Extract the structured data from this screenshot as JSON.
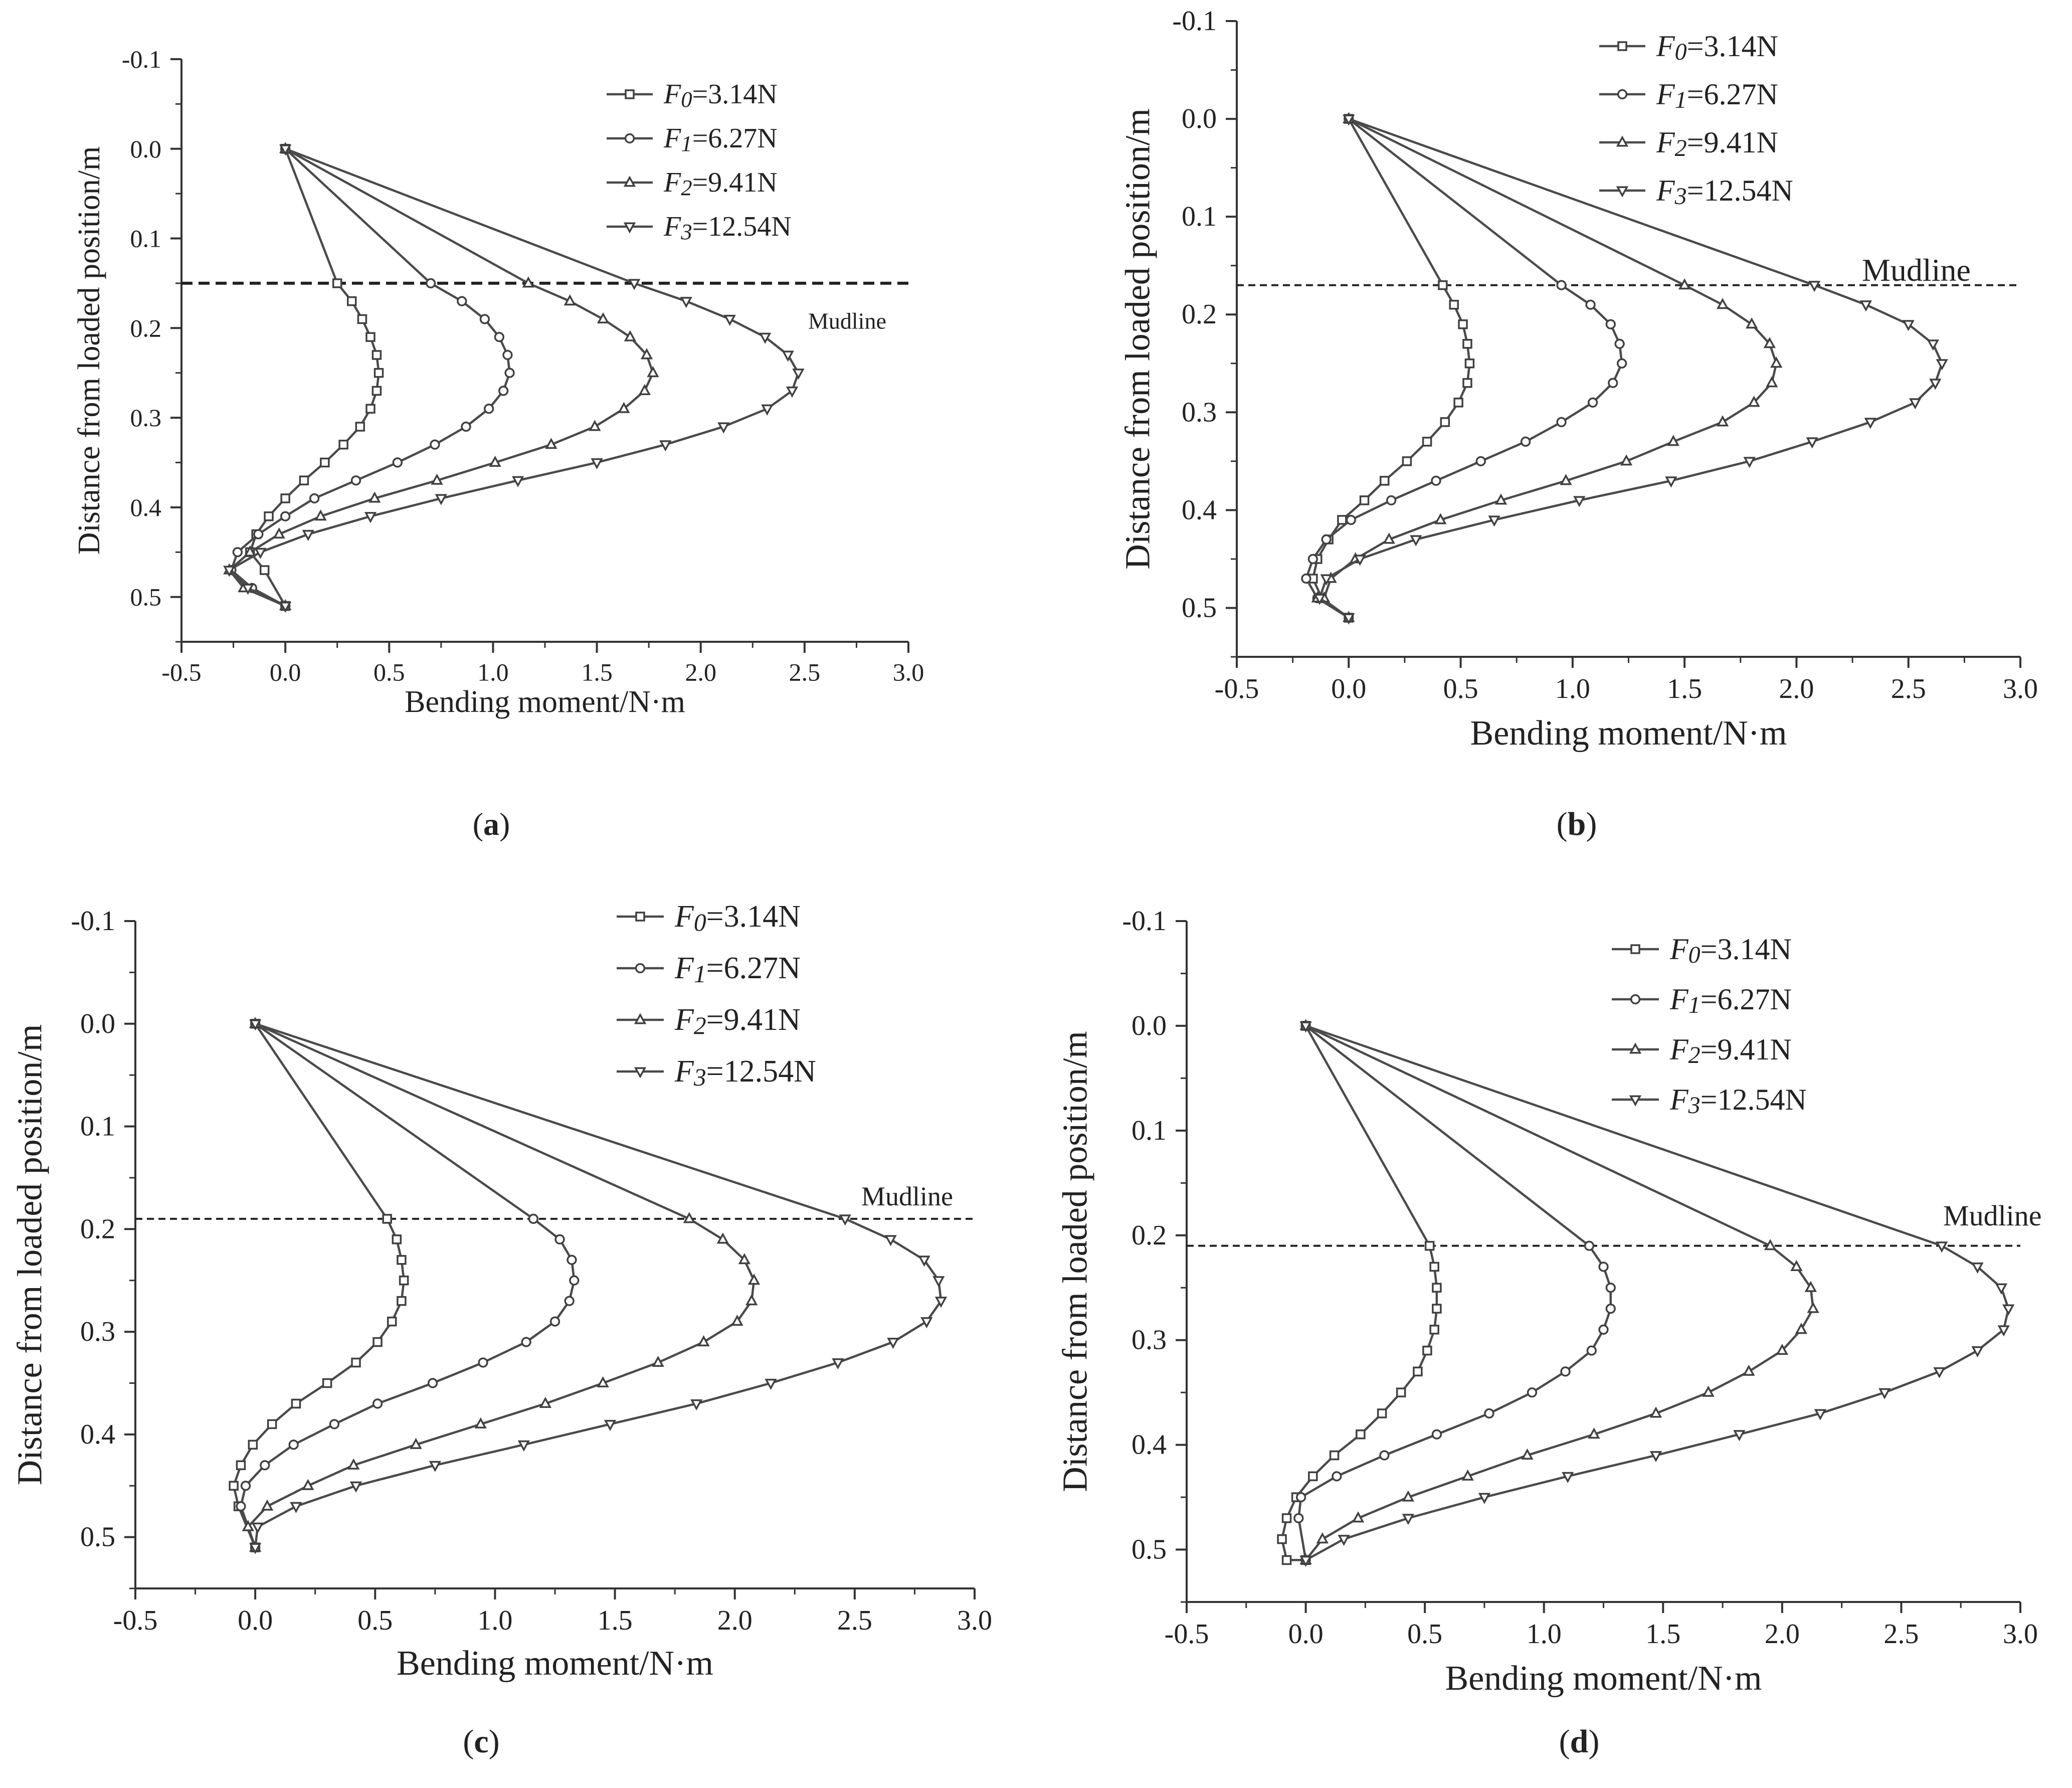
{
  "figure": {
    "panels": [
      {
        "id": "a",
        "caption_letter": "a",
        "series_names": [
          "F",
          "F",
          "F",
          "F"
        ],
        "series_subs": [
          "0",
          "1",
          "2",
          "3"
        ],
        "series_eqs": [
          "=3.14N",
          "=6.27N",
          "=9.41N",
          "=12.54N"
        ],
        "mudline_label": "Mudline"
      },
      {
        "id": "b",
        "caption_letter": "b",
        "series_names": [
          "F",
          "F",
          "F",
          "F"
        ],
        "series_subs": [
          "0",
          "1",
          "2",
          "3"
        ],
        "series_eqs": [
          "=3.14N",
          "=6.27N",
          "=9.41N",
          "=12.54N"
        ],
        "mudline_label": "Mudline"
      },
      {
        "id": "c",
        "caption_letter": "c",
        "series_names": [
          "F",
          "F",
          "F",
          "F"
        ],
        "series_subs": [
          "0",
          "1",
          "2",
          "3"
        ],
        "series_eqs": [
          "=3.14N",
          "=6.27N",
          "=9.41N",
          "=12.54N"
        ],
        "mudline_label": "Mudline"
      },
      {
        "id": "d",
        "caption_letter": "d",
        "series_names": [
          "F",
          "F",
          "F",
          "F"
        ],
        "series_subs": [
          "0",
          "1",
          "2",
          "3"
        ],
        "series_eqs": [
          "=3.14N",
          "=6.27N",
          "=9.41N",
          "=12.54N"
        ],
        "mudline_label": "Mudline"
      }
    ]
  },
  "chart_data": [
    {
      "panel": "a",
      "type": "line",
      "title": "",
      "xlabel": "Bending moment/N·m",
      "ylabel": "Distance from loaded position/m",
      "xlim": [
        -0.5,
        3.0
      ],
      "ylim": [
        -0.1,
        0.55
      ],
      "y_inverted": true,
      "xticks": [
        "-0.5",
        "0.0",
        "0.5",
        "1.0",
        "1.5",
        "2.0",
        "2.5",
        "3.0"
      ],
      "yticks": [
        "-0.1",
        "0.0",
        "0.1",
        "0.2",
        "0.3",
        "0.4",
        "0.5"
      ],
      "mudline": 0.15,
      "series": [
        {
          "name": "F0=3.14N",
          "marker": "square",
          "x": [
            0,
            0.25,
            0.32,
            0.37,
            0.41,
            0.44,
            0.45,
            0.44,
            0.41,
            0.36,
            0.28,
            0.19,
            0.09,
            0.0,
            -0.08,
            -0.14,
            -0.17,
            -0.1,
            0
          ],
          "y": [
            0,
            0.15,
            0.17,
            0.19,
            0.21,
            0.23,
            0.25,
            0.27,
            0.29,
            0.31,
            0.33,
            0.35,
            0.37,
            0.39,
            0.41,
            0.43,
            0.45,
            0.47,
            0.51
          ]
        },
        {
          "name": "F1=6.27N",
          "marker": "circle",
          "x": [
            0,
            0.7,
            0.85,
            0.96,
            1.03,
            1.07,
            1.08,
            1.05,
            0.98,
            0.87,
            0.72,
            0.54,
            0.34,
            0.14,
            0.0,
            -0.13,
            -0.23,
            -0.26,
            -0.16,
            0
          ],
          "y": [
            0,
            0.15,
            0.17,
            0.19,
            0.21,
            0.23,
            0.25,
            0.27,
            0.29,
            0.31,
            0.33,
            0.35,
            0.37,
            0.39,
            0.41,
            0.43,
            0.45,
            0.47,
            0.49,
            0.51
          ]
        },
        {
          "name": "F2=9.41N",
          "marker": "triangle-up",
          "x": [
            0,
            1.17,
            1.37,
            1.53,
            1.66,
            1.74,
            1.77,
            1.73,
            1.63,
            1.49,
            1.28,
            1.01,
            0.73,
            0.43,
            0.17,
            -0.03,
            -0.17,
            -0.27,
            -0.2,
            0
          ],
          "y": [
            0,
            0.15,
            0.17,
            0.19,
            0.21,
            0.23,
            0.25,
            0.27,
            0.29,
            0.31,
            0.33,
            0.35,
            0.37,
            0.39,
            0.41,
            0.43,
            0.45,
            0.47,
            0.49,
            0.51
          ]
        },
        {
          "name": "F3=12.54N",
          "marker": "triangle-down",
          "x": [
            0,
            1.68,
            1.93,
            2.14,
            2.31,
            2.42,
            2.47,
            2.44,
            2.32,
            2.11,
            1.83,
            1.5,
            1.12,
            0.75,
            0.41,
            0.11,
            -0.12,
            -0.27,
            -0.18,
            0
          ],
          "y": [
            0,
            0.15,
            0.17,
            0.19,
            0.21,
            0.23,
            0.25,
            0.27,
            0.29,
            0.31,
            0.33,
            0.35,
            0.37,
            0.39,
            0.41,
            0.43,
            0.45,
            0.47,
            0.49,
            0.51
          ]
        }
      ]
    },
    {
      "panel": "b",
      "type": "line",
      "title": "",
      "xlabel": "Bending moment/N·m",
      "ylabel": "Distance from loaded position/m",
      "xlim": [
        -0.5,
        3.0
      ],
      "ylim": [
        -0.1,
        0.55
      ],
      "y_inverted": true,
      "xticks": [
        "-0.5",
        "0.0",
        "0.5",
        "1.0",
        "1.5",
        "2.0",
        "2.5",
        "3.0"
      ],
      "yticks": [
        "-0.1",
        "0.0",
        "0.1",
        "0.2",
        "0.3",
        "0.4",
        "0.5"
      ],
      "mudline": 0.17,
      "series": [
        {
          "name": "F0=3.14N",
          "marker": "square",
          "x": [
            0,
            0.42,
            0.47,
            0.51,
            0.53,
            0.54,
            0.53,
            0.49,
            0.43,
            0.35,
            0.26,
            0.16,
            0.07,
            -0.03,
            -0.09,
            -0.14,
            -0.16,
            -0.12,
            0
          ],
          "y": [
            0,
            0.17,
            0.19,
            0.21,
            0.23,
            0.25,
            0.27,
            0.29,
            0.31,
            0.33,
            0.35,
            0.37,
            0.39,
            0.41,
            0.43,
            0.45,
            0.47,
            0.49,
            0.51
          ]
        },
        {
          "name": "F1=6.27N",
          "marker": "circle",
          "x": [
            0,
            0.95,
            1.08,
            1.17,
            1.21,
            1.22,
            1.18,
            1.09,
            0.95,
            0.79,
            0.59,
            0.39,
            0.19,
            0.01,
            -0.1,
            -0.16,
            -0.19,
            -0.14,
            0
          ],
          "y": [
            0,
            0.17,
            0.19,
            0.21,
            0.23,
            0.25,
            0.27,
            0.29,
            0.31,
            0.33,
            0.35,
            0.37,
            0.39,
            0.41,
            0.43,
            0.45,
            0.47,
            0.49,
            0.51
          ]
        },
        {
          "name": "F2=9.41N",
          "marker": "triangle-up",
          "x": [
            0,
            1.5,
            1.67,
            1.8,
            1.88,
            1.91,
            1.89,
            1.81,
            1.67,
            1.45,
            1.24,
            0.97,
            0.68,
            0.41,
            0.18,
            0.03,
            -0.08,
            -0.11,
            -0.14,
            0
          ],
          "y": [
            0,
            0.17,
            0.19,
            0.21,
            0.23,
            0.25,
            0.27,
            0.29,
            0.31,
            0.33,
            0.35,
            0.37,
            0.39,
            0.41,
            0.43,
            0.45,
            0.47,
            0.49,
            0.49,
            0.51
          ]
        },
        {
          "name": "F3=12.54N",
          "marker": "triangle-down",
          "x": [
            0,
            2.08,
            2.31,
            2.5,
            2.61,
            2.65,
            2.62,
            2.53,
            2.33,
            2.07,
            1.79,
            1.44,
            1.03,
            0.65,
            0.3,
            0.05,
            -0.1,
            -0.13,
            0
          ],
          "y": [
            0,
            0.17,
            0.19,
            0.21,
            0.23,
            0.25,
            0.27,
            0.29,
            0.31,
            0.33,
            0.35,
            0.37,
            0.39,
            0.41,
            0.43,
            0.45,
            0.47,
            0.49,
            0.51
          ]
        }
      ]
    },
    {
      "panel": "c",
      "type": "line",
      "title": "",
      "xlabel": "Bending moment/N·m",
      "ylabel": "Distance from loaded position/m",
      "xlim": [
        -0.5,
        3.0
      ],
      "ylim": [
        -0.1,
        0.55
      ],
      "y_inverted": true,
      "xticks": [
        "-0.5",
        "0.0",
        "0.5",
        "1.0",
        "1.5",
        "2.0",
        "2.5",
        "3.0"
      ],
      "yticks": [
        "-0.1",
        "0.0",
        "0.1",
        "0.2",
        "0.3",
        "0.4",
        "0.5"
      ],
      "mudline": 0.19,
      "series": [
        {
          "name": "F0=3.14N",
          "marker": "square",
          "x": [
            0,
            0.55,
            0.59,
            0.61,
            0.62,
            0.61,
            0.57,
            0.51,
            0.42,
            0.3,
            0.17,
            0.07,
            -0.01,
            -0.06,
            -0.09,
            -0.07,
            0
          ],
          "y": [
            0,
            0.19,
            0.21,
            0.23,
            0.25,
            0.27,
            0.29,
            0.31,
            0.33,
            0.35,
            0.37,
            0.39,
            0.41,
            0.43,
            0.45,
            0.47,
            0.51
          ]
        },
        {
          "name": "F1=6.27N",
          "marker": "circle",
          "x": [
            0,
            1.16,
            1.27,
            1.32,
            1.33,
            1.31,
            1.25,
            1.13,
            0.95,
            0.74,
            0.51,
            0.33,
            0.16,
            0.04,
            -0.04,
            -0.06,
            0
          ],
          "y": [
            0,
            0.19,
            0.21,
            0.23,
            0.25,
            0.27,
            0.29,
            0.31,
            0.33,
            0.35,
            0.37,
            0.39,
            0.41,
            0.43,
            0.45,
            0.47,
            0.51
          ]
        },
        {
          "name": "F2=9.41N",
          "marker": "triangle-up",
          "x": [
            0,
            1.81,
            1.95,
            2.04,
            2.08,
            2.07,
            2.01,
            1.87,
            1.68,
            1.45,
            1.21,
            0.94,
            0.67,
            0.41,
            0.22,
            0.05,
            -0.03,
            0
          ],
          "y": [
            0,
            0.19,
            0.21,
            0.23,
            0.25,
            0.27,
            0.29,
            0.31,
            0.33,
            0.35,
            0.37,
            0.39,
            0.41,
            0.43,
            0.45,
            0.47,
            0.49,
            0.51
          ]
        },
        {
          "name": "F3=12.54N",
          "marker": "triangle-down",
          "x": [
            0,
            2.46,
            2.65,
            2.79,
            2.85,
            2.86,
            2.8,
            2.66,
            2.43,
            2.15,
            1.84,
            1.48,
            1.12,
            0.75,
            0.42,
            0.17,
            0.01,
            0
          ],
          "y": [
            0,
            0.19,
            0.21,
            0.23,
            0.25,
            0.27,
            0.29,
            0.31,
            0.33,
            0.35,
            0.37,
            0.39,
            0.41,
            0.43,
            0.45,
            0.47,
            0.49,
            0.51
          ]
        }
      ]
    },
    {
      "panel": "d",
      "type": "line",
      "title": "",
      "xlabel": "Bending moment/N·m",
      "ylabel": "Distance from loaded position/m",
      "xlim": [
        -0.5,
        3.0
      ],
      "ylim": [
        -0.1,
        0.55
      ],
      "y_inverted": true,
      "xticks": [
        "-0.5",
        "0.0",
        "0.5",
        "1.0",
        "1.5",
        "2.0",
        "2.5",
        "3.0"
      ],
      "yticks": [
        "-0.1",
        "0.0",
        "0.1",
        "0.2",
        "0.3",
        "0.4",
        "0.5"
      ],
      "mudline": 0.21,
      "series": [
        {
          "name": "F0=3.14N",
          "marker": "square",
          "x": [
            0,
            0.52,
            0.54,
            0.55,
            0.55,
            0.54,
            0.51,
            0.47,
            0.4,
            0.32,
            0.23,
            0.12,
            0.03,
            -0.04,
            -0.08,
            -0.1,
            -0.08,
            0
          ],
          "y": [
            0,
            0.21,
            0.23,
            0.25,
            0.27,
            0.29,
            0.31,
            0.33,
            0.35,
            0.37,
            0.39,
            0.41,
            0.43,
            0.45,
            0.47,
            0.49,
            0.51,
            0.51
          ]
        },
        {
          "name": "F1=6.27N",
          "marker": "circle",
          "x": [
            0,
            1.19,
            1.25,
            1.28,
            1.28,
            1.25,
            1.2,
            1.09,
            0.95,
            0.77,
            0.55,
            0.33,
            0.13,
            -0.02,
            -0.03,
            0
          ],
          "y": [
            0,
            0.21,
            0.23,
            0.25,
            0.27,
            0.29,
            0.31,
            0.33,
            0.35,
            0.37,
            0.39,
            0.41,
            0.43,
            0.45,
            0.47,
            0.51
          ]
        },
        {
          "name": "F2=9.41N",
          "marker": "triangle-up",
          "x": [
            0,
            1.95,
            2.06,
            2.12,
            2.13,
            2.08,
            2.0,
            1.86,
            1.69,
            1.47,
            1.21,
            0.93,
            0.68,
            0.43,
            0.22,
            0.07,
            0
          ],
          "y": [
            0,
            0.21,
            0.23,
            0.25,
            0.27,
            0.29,
            0.31,
            0.33,
            0.35,
            0.37,
            0.39,
            0.41,
            0.43,
            0.45,
            0.47,
            0.49,
            0.51
          ]
        },
        {
          "name": "F3=12.54N",
          "marker": "triangle-down",
          "x": [
            0,
            2.67,
            2.82,
            2.92,
            2.95,
            2.93,
            2.82,
            2.66,
            2.43,
            2.16,
            1.82,
            1.47,
            1.1,
            0.75,
            0.43,
            0.16,
            0
          ],
          "y": [
            0,
            0.21,
            0.23,
            0.25,
            0.27,
            0.29,
            0.31,
            0.33,
            0.35,
            0.37,
            0.39,
            0.41,
            0.43,
            0.45,
            0.47,
            0.49,
            0.51
          ]
        }
      ]
    }
  ]
}
